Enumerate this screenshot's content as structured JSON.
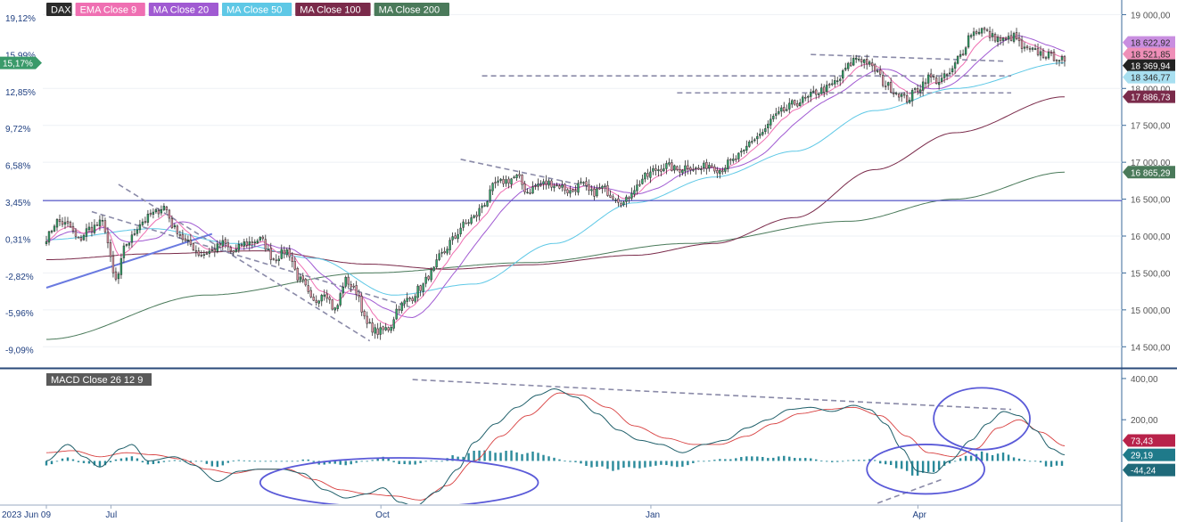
{
  "chart_data": [
    {
      "type": "candlestick",
      "panel": "price",
      "legend": [
        {
          "name": "DAX",
          "color": "#2b2b2b"
        },
        {
          "name": "EMA Close 9",
          "color": "#ef6fb2"
        },
        {
          "name": "MA Close 20",
          "color": "#a05ad2"
        },
        {
          "name": "MA Close 50",
          "color": "#5ec8e6"
        },
        {
          "name": "MA Close 100",
          "color": "#7a2a4a"
        },
        {
          "name": "MA Close 200",
          "color": "#4a7a5a"
        }
      ],
      "x_ticks": [
        {
          "label": "2023 Jun 09",
          "date": "2023-06-09"
        },
        {
          "label": "Jul",
          "date": "2023-07-01"
        },
        {
          "label": "Oct",
          "date": "2023-10-01"
        },
        {
          "label": "Jan",
          "date": "2024-01-01"
        },
        {
          "label": "Apr",
          "date": "2024-04-01"
        }
      ],
      "left_axis_pct_ticks": [
        "19,12%",
        "15,99%",
        "12,85%",
        "9,72%",
        "6,58%",
        "3,45%",
        "0,31%",
        "-2,82%",
        "-5,96%",
        "-9,09%"
      ],
      "left_badge": {
        "label": "15,17%",
        "color": "#3a9a6a"
      },
      "right_axis_ticks": [
        {
          "label": "19 000,00",
          "value": 19000
        },
        {
          "label": "18 000,00",
          "value": 18000
        },
        {
          "label": "17 500,00",
          "value": 17500
        },
        {
          "label": "17 000,00",
          "value": 17000
        },
        {
          "label": "16 500,00",
          "value": 16500
        },
        {
          "label": "16 000,00",
          "value": 16000
        },
        {
          "label": "15 500,00",
          "value": 15500
        },
        {
          "label": "15 000,00",
          "value": 15000
        },
        {
          "label": "14 500,00",
          "value": 14500
        }
      ],
      "ylim": [
        14250,
        19150
      ],
      "price_badges": [
        {
          "label": "18 622,92",
          "value": 18622.92,
          "color": "#c98ee0",
          "text_color": "#2b2b2b"
        },
        {
          "label": "18 521,85",
          "value": 18521.85,
          "color": "#ef8fb8",
          "text_color": "#2b2b2b"
        },
        {
          "label": "18 369,94",
          "value": 18369.94,
          "color": "#222222",
          "text_color": "#ffffff"
        },
        {
          "label": "18 346,77",
          "value": 18346.77,
          "color": "#a8dff0",
          "text_color": "#2b2b2b"
        },
        {
          "label": "17 886,73",
          "value": 17886.73,
          "color": "#7a2a4a",
          "text_color": "#ffffff"
        },
        {
          "label": "16 865,29",
          "value": 16865.29,
          "color": "#4a7a5a",
          "text_color": "#ffffff"
        }
      ],
      "horizontal_line": {
        "value": 16480,
        "color": "#5a5ac8"
      },
      "trend_lines": [
        {
          "style": "solid",
          "color": "#6a7ae0",
          "from": {
            "i": 0,
            "v": 15300
          },
          "to": {
            "i": 62,
            "v": 16030
          }
        },
        {
          "style": "dashed",
          "color": "#8a8aa8",
          "from": {
            "i": 27,
            "v": 16700
          },
          "to": {
            "i": 121,
            "v": 14580
          }
        },
        {
          "style": "dashed",
          "color": "#8a8aa8",
          "from": {
            "i": 17,
            "v": 16330
          },
          "to": {
            "i": 136,
            "v": 15040
          }
        },
        {
          "style": "dashed",
          "color": "#8a8aa8",
          "from": {
            "i": 155,
            "v": 17040
          },
          "to": {
            "i": 203,
            "v": 16670
          }
        },
        {
          "style": "dashed",
          "color": "#8a8aa8",
          "from": {
            "i": 286,
            "v": 18460
          },
          "to": {
            "i": 358,
            "v": 18370
          }
        },
        {
          "style": "dashed",
          "color": "#8a8aa8",
          "from": {
            "i": 163,
            "v": 18170
          },
          "to": {
            "i": 361,
            "v": 18170
          }
        },
        {
          "style": "dashed",
          "color": "#8a8aa8",
          "from": {
            "i": 236,
            "v": 17940
          },
          "to": {
            "i": 361,
            "v": 17940
          }
        }
      ],
      "anchors": [
        {
          "i": 0,
          "v": 15980
        },
        {
          "i": 4,
          "v": 16200
        },
        {
          "i": 8,
          "v": 16150
        },
        {
          "i": 12,
          "v": 15950
        },
        {
          "i": 16,
          "v": 16100
        },
        {
          "i": 21,
          "v": 16180
        },
        {
          "i": 26,
          "v": 15400
        },
        {
          "i": 30,
          "v": 15900
        },
        {
          "i": 36,
          "v": 16200
        },
        {
          "i": 40,
          "v": 16300
        },
        {
          "i": 44,
          "v": 16400
        },
        {
          "i": 48,
          "v": 16100
        },
        {
          "i": 53,
          "v": 15900
        },
        {
          "i": 58,
          "v": 15750
        },
        {
          "i": 62,
          "v": 15800
        },
        {
          "i": 66,
          "v": 15900
        },
        {
          "i": 70,
          "v": 15780
        },
        {
          "i": 74,
          "v": 15900
        },
        {
          "i": 80,
          "v": 15950
        },
        {
          "i": 85,
          "v": 15700
        },
        {
          "i": 90,
          "v": 15800
        },
        {
          "i": 95,
          "v": 15400
        },
        {
          "i": 100,
          "v": 15100
        },
        {
          "i": 104,
          "v": 15250
        },
        {
          "i": 108,
          "v": 15000
        },
        {
          "i": 112,
          "v": 15400
        },
        {
          "i": 116,
          "v": 15250
        },
        {
          "i": 120,
          "v": 14800
        },
        {
          "i": 124,
          "v": 14700
        },
        {
          "i": 128,
          "v": 14750
        },
        {
          "i": 132,
          "v": 15050
        },
        {
          "i": 136,
          "v": 15150
        },
        {
          "i": 140,
          "v": 15300
        },
        {
          "i": 144,
          "v": 15500
        },
        {
          "i": 148,
          "v": 15750
        },
        {
          "i": 152,
          "v": 15950
        },
        {
          "i": 156,
          "v": 16150
        },
        {
          "i": 160,
          "v": 16250
        },
        {
          "i": 164,
          "v": 16450
        },
        {
          "i": 168,
          "v": 16700
        },
        {
          "i": 172,
          "v": 16750
        },
        {
          "i": 176,
          "v": 16800
        },
        {
          "i": 180,
          "v": 16600
        },
        {
          "i": 184,
          "v": 16700
        },
        {
          "i": 188,
          "v": 16720
        },
        {
          "i": 192,
          "v": 16680
        },
        {
          "i": 196,
          "v": 16600
        },
        {
          "i": 200,
          "v": 16700
        },
        {
          "i": 204,
          "v": 16580
        },
        {
          "i": 208,
          "v": 16650
        },
        {
          "i": 212,
          "v": 16550
        },
        {
          "i": 216,
          "v": 16450
        },
        {
          "i": 220,
          "v": 16650
        },
        {
          "i": 224,
          "v": 16800
        },
        {
          "i": 228,
          "v": 16900
        },
        {
          "i": 232,
          "v": 16950
        },
        {
          "i": 236,
          "v": 16900
        },
        {
          "i": 240,
          "v": 16950
        },
        {
          "i": 244,
          "v": 16900
        },
        {
          "i": 248,
          "v": 16970
        },
        {
          "i": 252,
          "v": 16900
        },
        {
          "i": 256,
          "v": 17000
        },
        {
          "i": 260,
          "v": 17100
        },
        {
          "i": 264,
          "v": 17300
        },
        {
          "i": 268,
          "v": 17400
        },
        {
          "i": 272,
          "v": 17600
        },
        {
          "i": 276,
          "v": 17700
        },
        {
          "i": 280,
          "v": 17800
        },
        {
          "i": 284,
          "v": 17850
        },
        {
          "i": 288,
          "v": 17950
        },
        {
          "i": 292,
          "v": 18000
        },
        {
          "i": 296,
          "v": 18100
        },
        {
          "i": 300,
          "v": 18300
        },
        {
          "i": 303,
          "v": 18420
        },
        {
          "i": 306,
          "v": 18380
        },
        {
          "i": 310,
          "v": 18250
        },
        {
          "i": 314,
          "v": 18050
        },
        {
          "i": 318,
          "v": 17950
        },
        {
          "i": 322,
          "v": 17850
        },
        {
          "i": 326,
          "v": 18000
        },
        {
          "i": 330,
          "v": 18150
        },
        {
          "i": 334,
          "v": 18100
        },
        {
          "i": 338,
          "v": 18200
        },
        {
          "i": 342,
          "v": 18450
        },
        {
          "i": 346,
          "v": 18750
        },
        {
          "i": 350,
          "v": 18800
        },
        {
          "i": 354,
          "v": 18700
        },
        {
          "i": 358,
          "v": 18650
        },
        {
          "i": 362,
          "v": 18700
        },
        {
          "i": 366,
          "v": 18520
        },
        {
          "i": 370,
          "v": 18500
        },
        {
          "i": 374,
          "v": 18450
        },
        {
          "i": 378,
          "v": 18420
        },
        {
          "i": 381,
          "v": 18370
        }
      ],
      "ma_curves": {
        "ma100": [
          [
            0,
            15680
          ],
          [
            40,
            15760
          ],
          [
            80,
            15800
          ],
          [
            120,
            15620
          ],
          [
            150,
            15550
          ],
          [
            180,
            15610
          ],
          [
            220,
            15740
          ],
          [
            250,
            15900
          ],
          [
            280,
            16250
          ],
          [
            310,
            16900
          ],
          [
            340,
            17400
          ],
          [
            381,
            17886.73
          ]
        ],
        "ma200": [
          [
            0,
            14600
          ],
          [
            60,
            15200
          ],
          [
            120,
            15500
          ],
          [
            180,
            15640
          ],
          [
            240,
            15900
          ],
          [
            300,
            16200
          ],
          [
            340,
            16500
          ],
          [
            381,
            16865.29
          ]
        ],
        "ma50": [
          [
            0,
            15950
          ],
          [
            40,
            16100
          ],
          [
            70,
            15900
          ],
          [
            100,
            15700
          ],
          [
            130,
            15200
          ],
          [
            160,
            15350
          ],
          [
            190,
            15900
          ],
          [
            220,
            16450
          ],
          [
            250,
            16800
          ],
          [
            280,
            17150
          ],
          [
            310,
            17700
          ],
          [
            340,
            18000
          ],
          [
            381,
            18346.77
          ]
        ]
      },
      "n": 382
    },
    {
      "type": "line",
      "panel": "macd",
      "legend": [
        {
          "name": "MACD Close 26 12 9",
          "color": "#555555"
        }
      ],
      "right_axis_ticks": [
        {
          "label": "400,00",
          "value": 400
        },
        {
          "label": "200,00",
          "value": 200
        }
      ],
      "ylim": [
        -210,
        430
      ],
      "value_badges": [
        {
          "label": "73,43",
          "value": 73.43,
          "color": "#b8224a",
          "text_color": "#ffffff"
        },
        {
          "label": "29,19",
          "value": 29.19,
          "color": "#1f7a8a",
          "text_color": "#ffffff"
        },
        {
          "label": "-44,24",
          "value": -44.24,
          "color": "#1f6a7a",
          "text_color": "#ffffff"
        }
      ],
      "macd_anchors": [
        [
          0,
          0
        ],
        [
          8,
          80
        ],
        [
          14,
          20
        ],
        [
          20,
          -30
        ],
        [
          28,
          60
        ],
        [
          32,
          80
        ],
        [
          38,
          0
        ],
        [
          48,
          20
        ],
        [
          55,
          -20
        ],
        [
          64,
          -100
        ],
        [
          72,
          -50
        ],
        [
          80,
          -40
        ],
        [
          88,
          -40
        ],
        [
          96,
          -60
        ],
        [
          104,
          -140
        ],
        [
          112,
          -180
        ],
        [
          120,
          -160
        ],
        [
          126,
          -130
        ],
        [
          132,
          -200
        ],
        [
          138,
          -220
        ],
        [
          146,
          -150
        ],
        [
          154,
          -40
        ],
        [
          160,
          90
        ],
        [
          168,
          180
        ],
        [
          176,
          260
        ],
        [
          184,
          320
        ],
        [
          190,
          350
        ],
        [
          198,
          310
        ],
        [
          206,
          230
        ],
        [
          214,
          150
        ],
        [
          222,
          100
        ],
        [
          230,
          80
        ],
        [
          238,
          40
        ],
        [
          246,
          80
        ],
        [
          254,
          100
        ],
        [
          262,
          160
        ],
        [
          270,
          200
        ],
        [
          278,
          250
        ],
        [
          286,
          260
        ],
        [
          294,
          240
        ],
        [
          302,
          270
        ],
        [
          308,
          250
        ],
        [
          314,
          180
        ],
        [
          320,
          60
        ],
        [
          326,
          -50
        ],
        [
          332,
          -60
        ],
        [
          338,
          0
        ],
        [
          346,
          100
        ],
        [
          352,
          180
        ],
        [
          358,
          240
        ],
        [
          364,
          220
        ],
        [
          370,
          150
        ],
        [
          376,
          60
        ],
        [
          381,
          29.19
        ]
      ],
      "signal_anchors": [
        [
          0,
          40
        ],
        [
          10,
          50
        ],
        [
          20,
          20
        ],
        [
          30,
          40
        ],
        [
          40,
          30
        ],
        [
          50,
          10
        ],
        [
          60,
          -40
        ],
        [
          70,
          -60
        ],
        [
          80,
          -40
        ],
        [
          90,
          -40
        ],
        [
          100,
          -90
        ],
        [
          110,
          -140
        ],
        [
          120,
          -160
        ],
        [
          130,
          -170
        ],
        [
          140,
          -190
        ],
        [
          150,
          -120
        ],
        [
          160,
          0
        ],
        [
          170,
          120
        ],
        [
          180,
          220
        ],
        [
          192,
          330
        ],
        [
          200,
          320
        ],
        [
          210,
          260
        ],
        [
          220,
          170
        ],
        [
          232,
          110
        ],
        [
          242,
          80
        ],
        [
          252,
          80
        ],
        [
          262,
          120
        ],
        [
          272,
          180
        ],
        [
          282,
          230
        ],
        [
          292,
          250
        ],
        [
          302,
          260
        ],
        [
          312,
          220
        ],
        [
          322,
          120
        ],
        [
          330,
          40
        ],
        [
          340,
          20
        ],
        [
          348,
          60
        ],
        [
          356,
          160
        ],
        [
          364,
          200
        ],
        [
          372,
          140
        ],
        [
          381,
          73.43
        ]
      ],
      "trend_lines": [
        {
          "style": "dashed",
          "color": "#8a8aa8",
          "from": {
            "i": 137,
            "v": 395
          },
          "to": {
            "i": 361,
            "v": 250
          }
        },
        {
          "style": "dashed",
          "color": "#8a8aa8",
          "from": {
            "i": 311,
            "v": -205
          },
          "to": {
            "i": 335,
            "v": -90
          }
        }
      ],
      "ellipses": [
        {
          "ci": 132,
          "cv": -105,
          "ri": 52,
          "rv": 120
        },
        {
          "ci": 329,
          "cv": -40,
          "ri": 22,
          "rv": 120
        },
        {
          "ci": 350,
          "cv": 205,
          "ri": 18,
          "rv": 150
        }
      ]
    }
  ]
}
